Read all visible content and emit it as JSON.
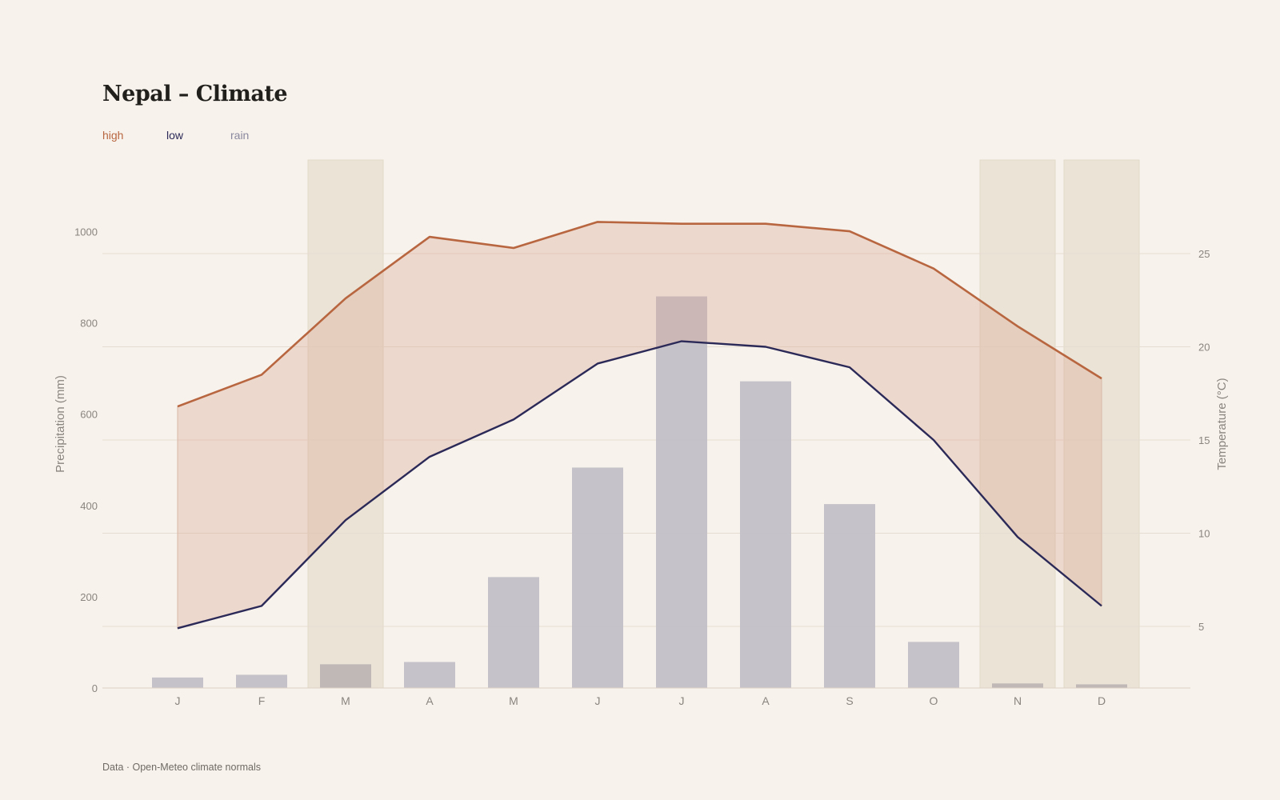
{
  "title": "Nepal – Climate",
  "legend": [
    {
      "key": "high",
      "label": "high",
      "color": "#b8663f"
    },
    {
      "key": "low",
      "label": "low",
      "color": "#2b2957"
    },
    {
      "key": "rain",
      "label": "rain",
      "color": "#8a889e"
    }
  ],
  "footer": "Data · Open-Meteo climate normals",
  "colors": {
    "background": "#f7f2ec",
    "high": "#b8663f",
    "low": "#2b2957",
    "rain_bar": "#c2bfc7",
    "band_fill": "#e8d3c8",
    "highlight": "#ebe3d6",
    "grid": "#e6ddd2",
    "axis_text": "#8a857e"
  },
  "chart_data": {
    "type": "bar+line",
    "categories": [
      "J",
      "F",
      "M",
      "A",
      "M",
      "J",
      "J",
      "A",
      "S",
      "O",
      "N",
      "D"
    ],
    "highlighted_months": [
      2,
      10,
      11
    ],
    "series": [
      {
        "name": "rain",
        "axis": "left",
        "kind": "bar",
        "values": [
          23,
          29,
          52,
          57,
          243,
          483,
          858,
          672,
          403,
          101,
          10,
          8
        ]
      },
      {
        "name": "high",
        "axis": "right",
        "kind": "line",
        "values": [
          16.8,
          18.5,
          22.6,
          25.9,
          25.3,
          26.7,
          26.6,
          26.6,
          26.2,
          24.2,
          21.1,
          18.3
        ]
      },
      {
        "name": "low",
        "axis": "right",
        "kind": "line",
        "values": [
          4.9,
          6.1,
          10.7,
          14.1,
          16.1,
          19.1,
          20.3,
          20.0,
          18.9,
          15.0,
          9.8,
          6.1
        ]
      }
    ],
    "left_axis": {
      "label": "Precipitation (mm)",
      "ticks": [
        0,
        200,
        400,
        600,
        800,
        1000
      ],
      "ylim": [
        0,
        1000
      ]
    },
    "right_axis": {
      "label": "Temperature (°C)",
      "ticks": [
        5,
        10,
        15,
        20,
        25
      ],
      "ylim": [
        5,
        25
      ]
    },
    "grid": true
  }
}
